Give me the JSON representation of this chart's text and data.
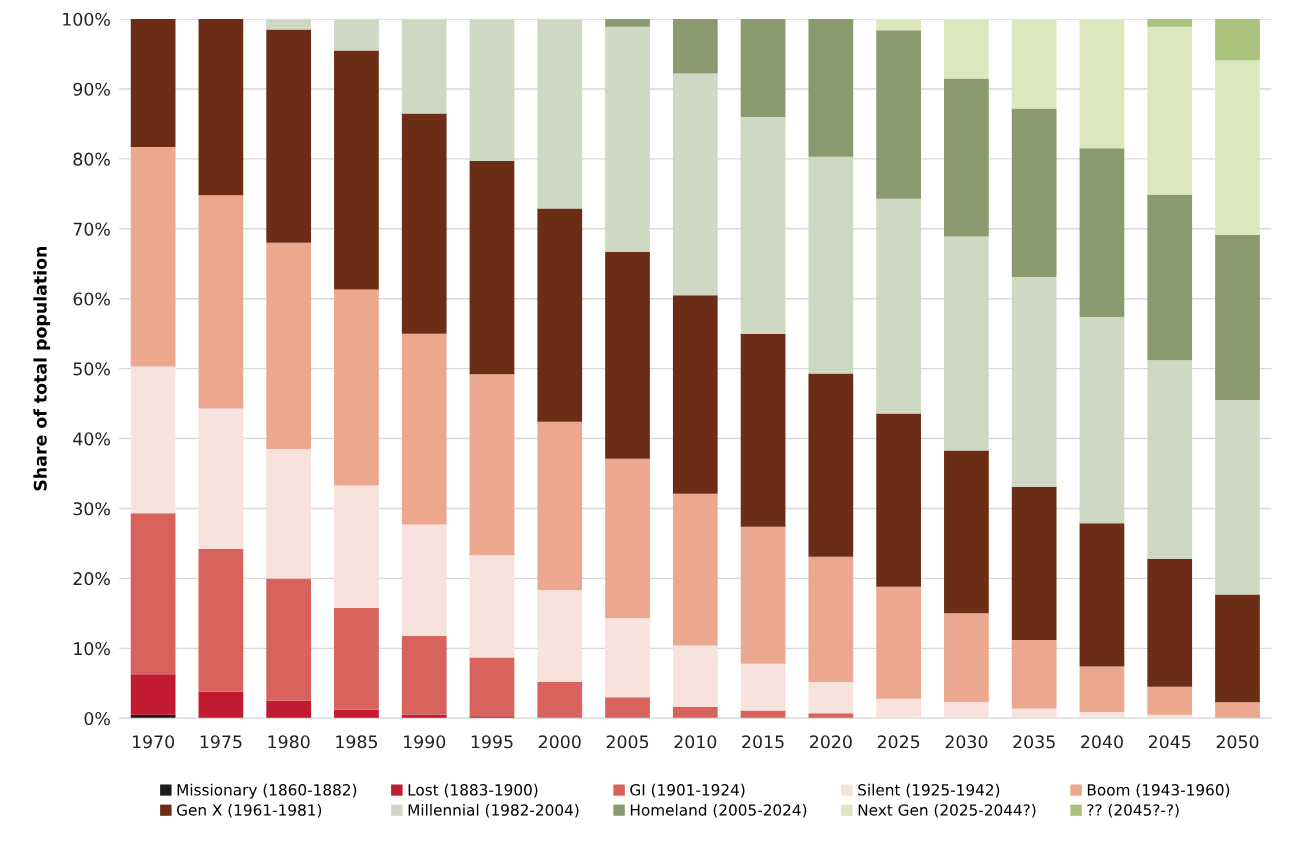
{
  "chart_data": {
    "type": "bar",
    "stacked": true,
    "ylabel": "Share of total population",
    "categories": [
      "1970",
      "1975",
      "1980",
      "1985",
      "1990",
      "1995",
      "2000",
      "2005",
      "2010",
      "2015",
      "2020",
      "2025",
      "2030",
      "2035",
      "2040",
      "2045",
      "2050"
    ],
    "series": [
      {
        "name": "Missionary (1860-1882)",
        "color": "#1e1a18",
        "values": [
          0.5,
          null,
          null,
          null,
          null,
          null,
          null,
          null,
          null,
          null,
          null,
          null,
          null,
          null,
          null,
          null,
          null
        ]
      },
      {
        "name": "Lost (1883-1900)",
        "color": "#c21a30",
        "values": [
          5.8,
          3.8,
          2.5,
          1.2,
          0.5,
          0.3,
          null,
          null,
          null,
          null,
          null,
          null,
          null,
          null,
          null,
          null,
          null
        ]
      },
      {
        "name": "GI (1901-1924)",
        "color": "#d8625c",
        "values": [
          23.0,
          20.4,
          17.5,
          14.6,
          11.3,
          8.4,
          5.2,
          3.0,
          1.6,
          1.1,
          0.7,
          null,
          null,
          null,
          null,
          null,
          null
        ]
      },
      {
        "name": "Silent (1925-1942)",
        "color": "#f7e2de",
        "values": [
          21.0,
          20.1,
          18.5,
          17.5,
          15.9,
          14.6,
          13.1,
          11.3,
          8.8,
          6.7,
          4.5,
          2.8,
          2.3,
          1.4,
          0.9,
          0.5,
          null
        ]
      },
      {
        "name": "Boom (1943-1960)",
        "color": "#eba88f",
        "values": [
          31.4,
          30.5,
          29.5,
          28.0,
          27.3,
          25.9,
          24.1,
          22.8,
          21.7,
          19.6,
          17.9,
          16.0,
          12.7,
          9.8,
          6.5,
          4.0,
          2.3
        ]
      },
      {
        "name": "Gen X (1961-1981)",
        "color": "#6c2d16",
        "values": [
          18.3,
          25.2,
          30.5,
          34.2,
          31.5,
          30.5,
          30.5,
          29.6,
          28.4,
          27.6,
          26.2,
          24.8,
          23.3,
          21.9,
          20.5,
          18.3,
          15.4
        ]
      },
      {
        "name": "Millennial (1982-2004)",
        "color": "#cfd8c3",
        "values": [
          null,
          null,
          1.5,
          4.5,
          13.5,
          20.3,
          27.1,
          32.2,
          31.7,
          31.0,
          31.0,
          30.7,
          30.6,
          30.0,
          29.5,
          28.4,
          27.8
        ]
      },
      {
        "name": "Homeland (2005-2024)",
        "color": "#8a9a6e",
        "values": [
          null,
          null,
          null,
          null,
          null,
          null,
          null,
          1.1,
          7.8,
          14.0,
          19.7,
          24.1,
          22.6,
          24.1,
          24.1,
          23.7,
          23.6
        ]
      },
      {
        "name": "Next Gen (2025-2044?)",
        "color": "#dde7bd",
        "values": [
          null,
          null,
          null,
          null,
          null,
          null,
          null,
          null,
          null,
          null,
          null,
          1.6,
          8.5,
          12.8,
          18.5,
          24.0,
          25.0
        ]
      },
      {
        "name": "?? (2045?-?)",
        "color": "#a9c27c",
        "values": [
          null,
          null,
          null,
          null,
          null,
          null,
          null,
          null,
          null,
          null,
          null,
          null,
          null,
          null,
          null,
          1.1,
          5.9
        ]
      }
    ],
    "ylim": [
      0,
      100
    ],
    "yticks": [
      {
        "value": 0,
        "label": "0%"
      },
      {
        "value": 10,
        "label": "10%"
      },
      {
        "value": 20,
        "label": "20%"
      },
      {
        "value": 30,
        "label": "30%"
      },
      {
        "value": 40,
        "label": "40%"
      },
      {
        "value": 50,
        "label": "50%"
      },
      {
        "value": 60,
        "label": "60%"
      },
      {
        "value": 70,
        "label": "70%"
      },
      {
        "value": 80,
        "label": "80%"
      },
      {
        "value": 90,
        "label": "90%"
      },
      {
        "value": 100,
        "label": "100%"
      }
    ],
    "grid": "y",
    "legend": "bottom"
  }
}
